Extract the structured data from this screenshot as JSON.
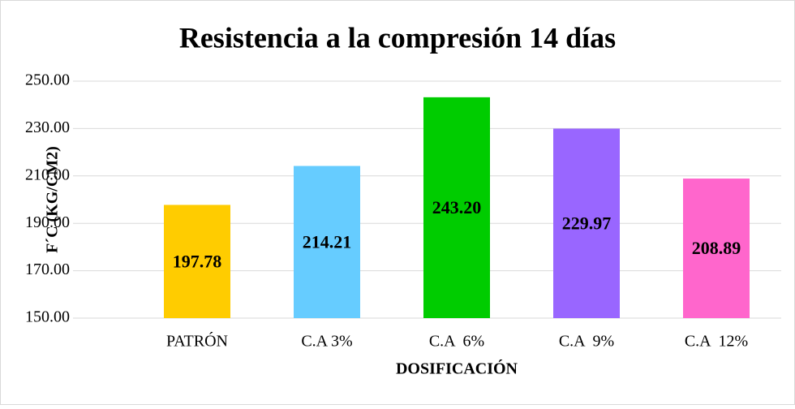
{
  "chart_data": {
    "type": "bar",
    "title": "Resistencia a la compresión 14 días",
    "xlabel": "DOSIFICACIÓN",
    "ylabel": "F´C (KG/CM2)",
    "categories": [
      "PATRÓN",
      "C.A 3%",
      "C.A  6%",
      "C.A  9%",
      "C.A  12%"
    ],
    "values": [
      197.78,
      214.21,
      243.2,
      229.97,
      208.89
    ],
    "value_labels": [
      "197.78",
      "214.21",
      "243.20",
      "229.97",
      "208.89"
    ],
    "colors": [
      "#ffcc00",
      "#66ccff",
      "#00cc00",
      "#9966ff",
      "#ff66cc"
    ],
    "ylim": [
      150,
      250
    ],
    "yticks": [
      {
        "value": 150,
        "label": "150.00"
      },
      {
        "value": 170,
        "label": "170.00"
      },
      {
        "value": 190,
        "label": "190.00"
      },
      {
        "value": 210,
        "label": "210.00"
      },
      {
        "value": 230,
        "label": "230.00"
      },
      {
        "value": 250,
        "label": "250.00"
      }
    ],
    "grid": true
  }
}
